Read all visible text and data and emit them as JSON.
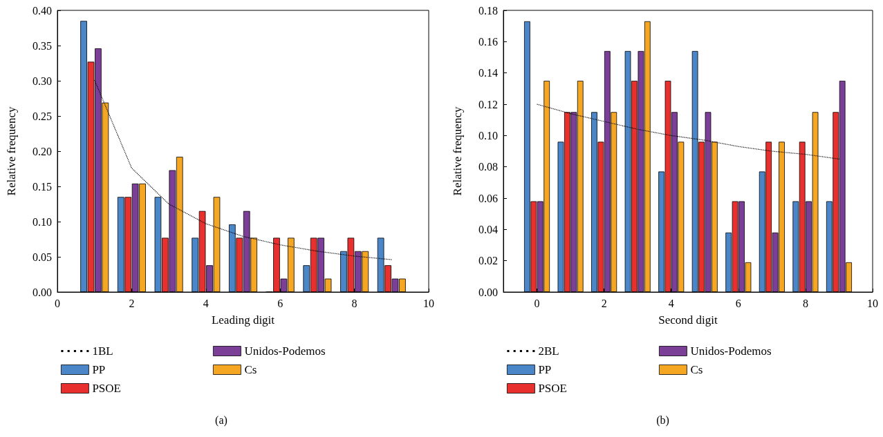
{
  "chart_data": [
    {
      "type": "bar",
      "xlabel": "Leading digit",
      "ylabel": "Relative frequency",
      "annotations": [
        "(a)"
      ],
      "legend": "bottom",
      "grid": false,
      "marker": "none",
      "line_style": "dotted",
      "x": [
        1,
        2,
        3,
        4,
        5,
        6,
        7,
        8,
        9
      ],
      "xlim": [
        0,
        10
      ],
      "xticks": [
        0,
        2,
        4,
        6,
        8,
        10
      ],
      "ylim": [
        0,
        0.4
      ],
      "yticks": [
        {
          "value": 0,
          "label": "0.00"
        },
        {
          "value": 0.05,
          "label": "0.05"
        },
        {
          "value": 0.1,
          "label": "0.10"
        },
        {
          "value": 0.15,
          "label": "0.15"
        },
        {
          "value": 0.2,
          "label": "0.20"
        },
        {
          "value": 0.25,
          "label": "0.25"
        },
        {
          "value": 0.3,
          "label": "0.30"
        },
        {
          "value": 0.35,
          "label": "0.35"
        },
        {
          "value": 0.4,
          "label": "0.40"
        }
      ],
      "series": [
        {
          "name": "1BL",
          "type": "line",
          "color": "#000000",
          "x": [
            1,
            2,
            3,
            4,
            5,
            6,
            7,
            8,
            9
          ],
          "values": [
            0.301,
            0.176,
            0.125,
            0.097,
            0.079,
            0.067,
            0.058,
            0.051,
            0.046
          ]
        },
        {
          "name": "PP",
          "color": "#4a86c8",
          "values": [
            0.385,
            0.135,
            0.135,
            0.077,
            0.096,
            0,
            0.038,
            0.058,
            0.077
          ]
        },
        {
          "name": "PSOE",
          "color": "#e8312f",
          "values": [
            0.327,
            0.135,
            0.077,
            0.115,
            0.077,
            0.077,
            0.077,
            0.077,
            0.038
          ]
        },
        {
          "name": "Unidos-Podemos",
          "color": "#7b3f98",
          "values": [
            0.346,
            0.154,
            0.173,
            0.038,
            0.115,
            0.019,
            0.077,
            0.058,
            0.019
          ]
        },
        {
          "name": "Cs",
          "color": "#f5a623",
          "values": [
            0.269,
            0.154,
            0.192,
            0.135,
            0.077,
            0.077,
            0.019,
            0.058,
            0.019
          ]
        }
      ]
    },
    {
      "type": "bar",
      "xlabel": "Second digit",
      "ylabel": "Relative frequency",
      "annotations": [
        "(b)"
      ],
      "legend": "bottom",
      "grid": false,
      "marker": "none",
      "line_style": "dotted",
      "x": [
        0,
        1,
        2,
        3,
        4,
        5,
        6,
        7,
        8,
        9
      ],
      "xlim": [
        -1,
        10
      ],
      "xticks": [
        0,
        2,
        4,
        6,
        8,
        10
      ],
      "ylim": [
        0,
        0.18
      ],
      "yticks": [
        {
          "value": 0,
          "label": "0.00"
        },
        {
          "value": 0.02,
          "label": "0.02"
        },
        {
          "value": 0.04,
          "label": "0.04"
        },
        {
          "value": 0.06,
          "label": "0.06"
        },
        {
          "value": 0.08,
          "label": "0.08"
        },
        {
          "value": 0.1,
          "label": "0.10"
        },
        {
          "value": 0.12,
          "label": "0.12"
        },
        {
          "value": 0.14,
          "label": "0.14"
        },
        {
          "value": 0.16,
          "label": "0.16"
        },
        {
          "value": 0.18,
          "label": "0.18"
        }
      ],
      "series": [
        {
          "name": "2BL",
          "type": "line",
          "color": "#000000",
          "x": [
            0,
            1,
            2,
            3,
            4,
            5,
            6,
            7,
            8,
            9
          ],
          "values": [
            0.12,
            0.114,
            0.109,
            0.104,
            0.1,
            0.097,
            0.093,
            0.09,
            0.088,
            0.085
          ]
        },
        {
          "name": "PP",
          "color": "#4a86c8",
          "values": [
            0.173,
            0.096,
            0.115,
            0.154,
            0.077,
            0.154,
            0.038,
            0.077,
            0.058,
            0.058
          ]
        },
        {
          "name": "PSOE",
          "color": "#e8312f",
          "values": [
            0.058,
            0.115,
            0.096,
            0.135,
            0.135,
            0.096,
            0.058,
            0.096,
            0.096,
            0.115
          ]
        },
        {
          "name": "Unidos-Podemos",
          "color": "#7b3f98",
          "values": [
            0.058,
            0.115,
            0.154,
            0.154,
            0.115,
            0.115,
            0.058,
            0.038,
            0.058,
            0.135
          ]
        },
        {
          "name": "Cs",
          "color": "#f5a623",
          "values": [
            0.135,
            0.135,
            0.115,
            0.173,
            0.096,
            0.096,
            0.019,
            0.096,
            0.115,
            0.019
          ]
        }
      ]
    }
  ]
}
